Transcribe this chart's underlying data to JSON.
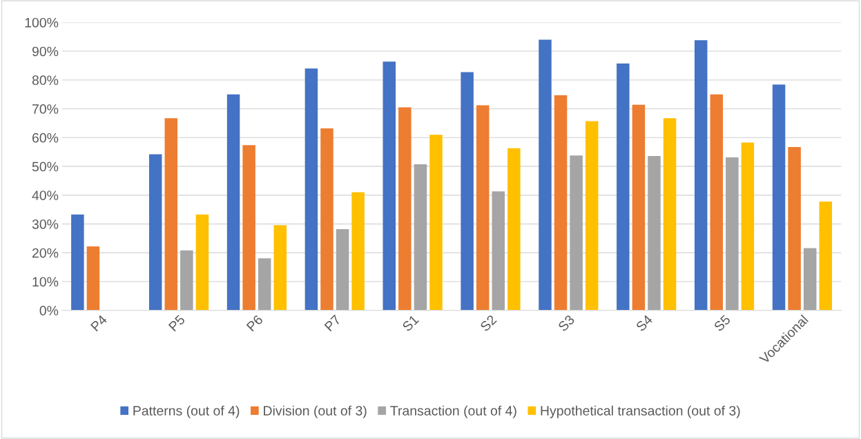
{
  "chart_data": {
    "type": "bar",
    "categories": [
      "P4",
      "P5",
      "P6",
      "P7",
      "S1",
      "S2",
      "S3",
      "S4",
      "S5",
      "Vocational"
    ],
    "series": [
      {
        "name": "Patterns (out of 4)",
        "color": "#4472c4",
        "values": [
          33.3,
          54.2,
          75.0,
          84.0,
          86.4,
          82.7,
          94.0,
          85.7,
          93.8,
          78.4
        ]
      },
      {
        "name": "Division (out of 3)",
        "color": "#ed7d31",
        "values": [
          22.2,
          66.7,
          57.4,
          63.2,
          70.5,
          71.2,
          74.7,
          71.4,
          75.0,
          56.7
        ]
      },
      {
        "name": "Transaction (out of 4)",
        "color": "#a5a5a5",
        "values": [
          null,
          20.8,
          18.1,
          28.2,
          50.7,
          41.3,
          53.8,
          53.6,
          53.1,
          21.6
        ]
      },
      {
        "name": "Hypothetical transaction (out of 3)",
        "color": "#ffc000",
        "values": [
          null,
          33.3,
          29.6,
          41.0,
          61.0,
          56.3,
          65.7,
          66.7,
          58.3,
          37.8
        ]
      }
    ],
    "ylim": [
      0,
      100
    ],
    "yticks": [
      {
        "value": 0,
        "label": "0%"
      },
      {
        "value": 10,
        "label": "10%"
      },
      {
        "value": 20,
        "label": "20%"
      },
      {
        "value": 30,
        "label": "30%"
      },
      {
        "value": 40,
        "label": "40%"
      },
      {
        "value": 50,
        "label": "50%"
      },
      {
        "value": 60,
        "label": "60%"
      },
      {
        "value": 70,
        "label": "70%"
      },
      {
        "value": 80,
        "label": "80%"
      },
      {
        "value": 90,
        "label": "90%"
      },
      {
        "value": 100,
        "label": "100%"
      }
    ],
    "grid": "y",
    "legend": "bottom"
  }
}
